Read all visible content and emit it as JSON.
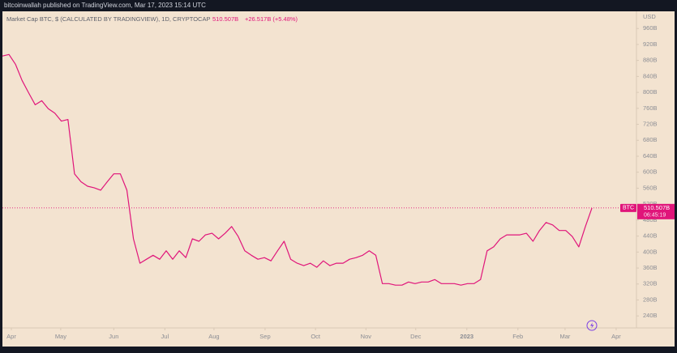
{
  "publisher": "bitcoinwallah published on TradingView.com, Mar 17, 2023 15:14 UTC",
  "chart_data": {
    "type": "line",
    "title": "Market Cap BTC, $ (CALCULATED BY TRADINGVIEW), 1D, CRYPTOCAP",
    "price": "510.507B",
    "change": "+26.517B (+5.48%)",
    "currency": "USD",
    "price_tag": {
      "name": "BTC",
      "price": "510.507B",
      "countdown": "06:45:19"
    },
    "series": [
      {
        "name": "BTC",
        "color": "#e0157a",
        "values": [
          891,
          895,
          870,
          830,
          799,
          769,
          779,
          759,
          748,
          728,
          732,
          596,
          576,
          565,
          561,
          555,
          576,
          596,
          596,
          555,
          433,
          372,
          382,
          392,
          382,
          403,
          382,
          403,
          386,
          433,
          427,
          443,
          447,
          433,
          447,
          464,
          439,
          403,
          392,
          382,
          386,
          378,
          403,
          427,
          382,
          372,
          366,
          372,
          362,
          378,
          366,
          372,
          372,
          382,
          386,
          392,
          403,
          392,
          321,
          321,
          317,
          317,
          325,
          321,
          325,
          325,
          331,
          321,
          321,
          321,
          317,
          321,
          321,
          331,
          403,
          413,
          433,
          443,
          443,
          443,
          447,
          427,
          454,
          474,
          468,
          454,
          454,
          439,
          413,
          464,
          510.5
        ]
      }
    ],
    "xlim": [
      0,
      96.8
    ],
    "xticks": [
      {
        "value": 1.36,
        "label": "Apr"
      },
      {
        "value": 8.9,
        "label": "May"
      },
      {
        "value": 17,
        "label": "Jun"
      },
      {
        "value": 24.8,
        "label": "Jul"
      },
      {
        "value": 32.3,
        "label": "Aug"
      },
      {
        "value": 40.1,
        "label": "Sep"
      },
      {
        "value": 47.8,
        "label": "Oct"
      },
      {
        "value": 55.5,
        "label": "Nov"
      },
      {
        "value": 63.1,
        "label": "Dec"
      },
      {
        "value": 70.9,
        "label": "2023"
      },
      {
        "value": 78.7,
        "label": "Feb"
      },
      {
        "value": 85.9,
        "label": "Mar"
      },
      {
        "value": 93.7,
        "label": "Apr"
      }
    ],
    "ylim": [
      210,
      1003
    ],
    "yticks": [
      {
        "value": 960,
        "label": "960B"
      },
      {
        "value": 920,
        "label": "920B"
      },
      {
        "value": 880,
        "label": "880B"
      },
      {
        "value": 840,
        "label": "840B"
      },
      {
        "value": 800,
        "label": "800B"
      },
      {
        "value": 760,
        "label": "760B"
      },
      {
        "value": 720,
        "label": "720B"
      },
      {
        "value": 680,
        "label": "680B"
      },
      {
        "value": 640,
        "label": "640B"
      },
      {
        "value": 600,
        "label": "600B"
      },
      {
        "value": 560,
        "label": "560B"
      },
      {
        "value": 520,
        "label": "520B"
      },
      {
        "value": 480,
        "label": "480B"
      },
      {
        "value": 440,
        "label": "440B"
      },
      {
        "value": 400,
        "label": "400B"
      },
      {
        "value": 360,
        "label": "360B"
      },
      {
        "value": 320,
        "label": "320B"
      },
      {
        "value": 280,
        "label": "280B"
      },
      {
        "value": 240,
        "label": "240B"
      }
    ]
  }
}
